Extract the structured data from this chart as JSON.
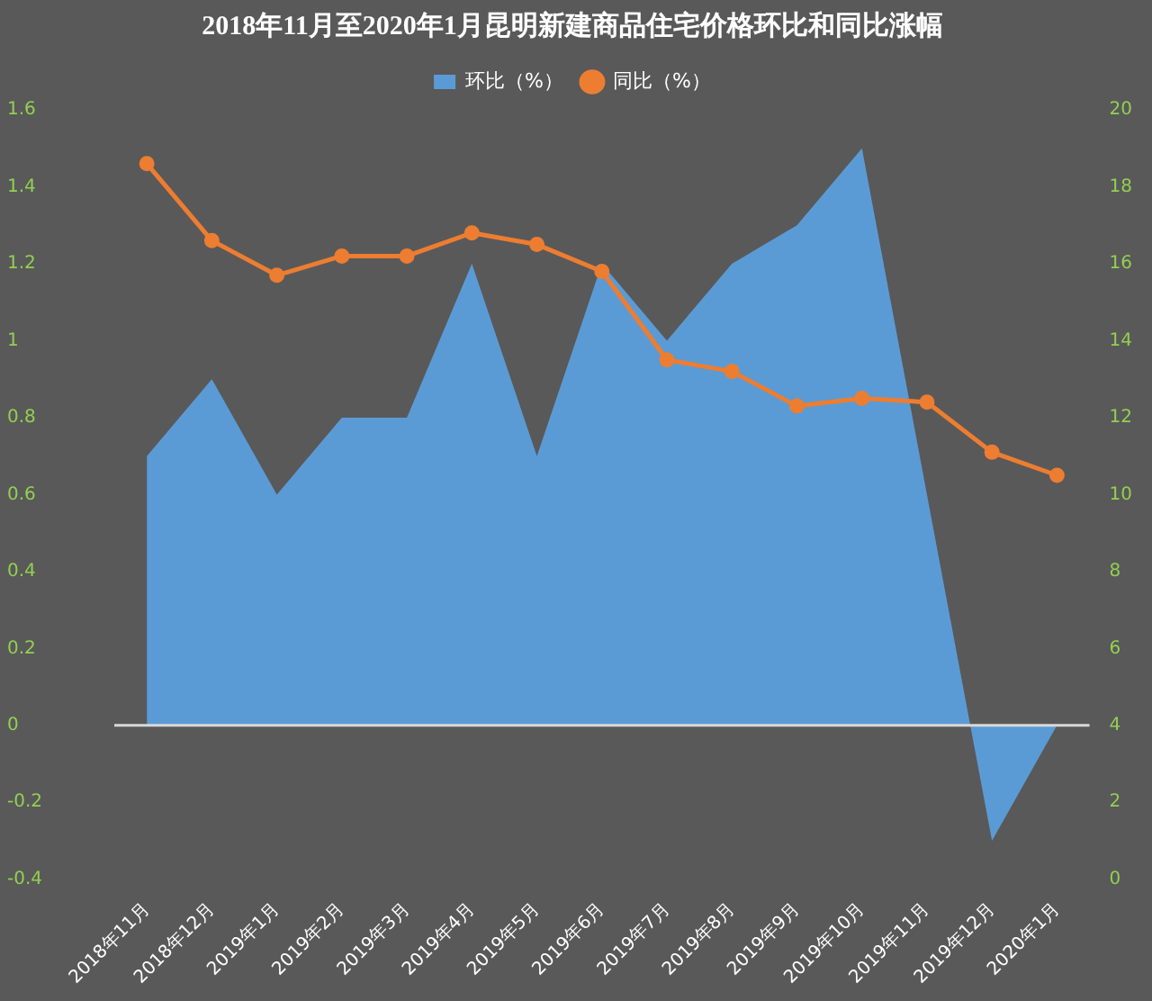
{
  "chart_data": {
    "type": "area",
    "title": "2018年11月至2020年1月昆明新建商品住宅价格环比和同比涨幅",
    "categories": [
      "2018年11月",
      "2018年12月",
      "2019年1月",
      "2019年2月",
      "2019年3月",
      "2019年4月",
      "2019年5月",
      "2019年6月",
      "2019年7月",
      "2019年8月",
      "2019年9月",
      "2019年10月",
      "2019年11月",
      "2019年12月",
      "2020年1月"
    ],
    "series": [
      {
        "name": "环比（%）",
        "type": "area",
        "marker": "none",
        "color": "#5b9bd5",
        "values": [
          0.7,
          0.9,
          0.6,
          0.8,
          0.8,
          1.2,
          0.7,
          1.2,
          1.0,
          1.2,
          1.3,
          1.5,
          0.6,
          -0.3,
          0.0
        ]
      },
      {
        "name": "同比（%）",
        "type": "line",
        "marker": "circle",
        "axis": "y2",
        "color": "#ed7d31",
        "values": [
          18.6,
          16.6,
          15.7,
          16.2,
          16.2,
          16.8,
          16.5,
          15.8,
          13.5,
          13.2,
          12.3,
          12.5,
          12.4,
          11.1,
          10.5
        ]
      }
    ],
    "ylim": [
      -0.4,
      1.6
    ],
    "yticks": [
      -0.4,
      -0.2,
      0,
      0.2,
      0.4,
      0.6,
      0.8,
      1,
      1.2,
      1.4,
      1.6
    ],
    "y2lim": [
      0,
      20
    ],
    "y2ticks": [
      0,
      2,
      4,
      6,
      8,
      10,
      12,
      14,
      16,
      18,
      20
    ],
    "ref_lines": [
      {
        "axis": "y",
        "value": 0,
        "color": "#d9d9d9"
      }
    ],
    "grid": false,
    "legend": "top"
  }
}
